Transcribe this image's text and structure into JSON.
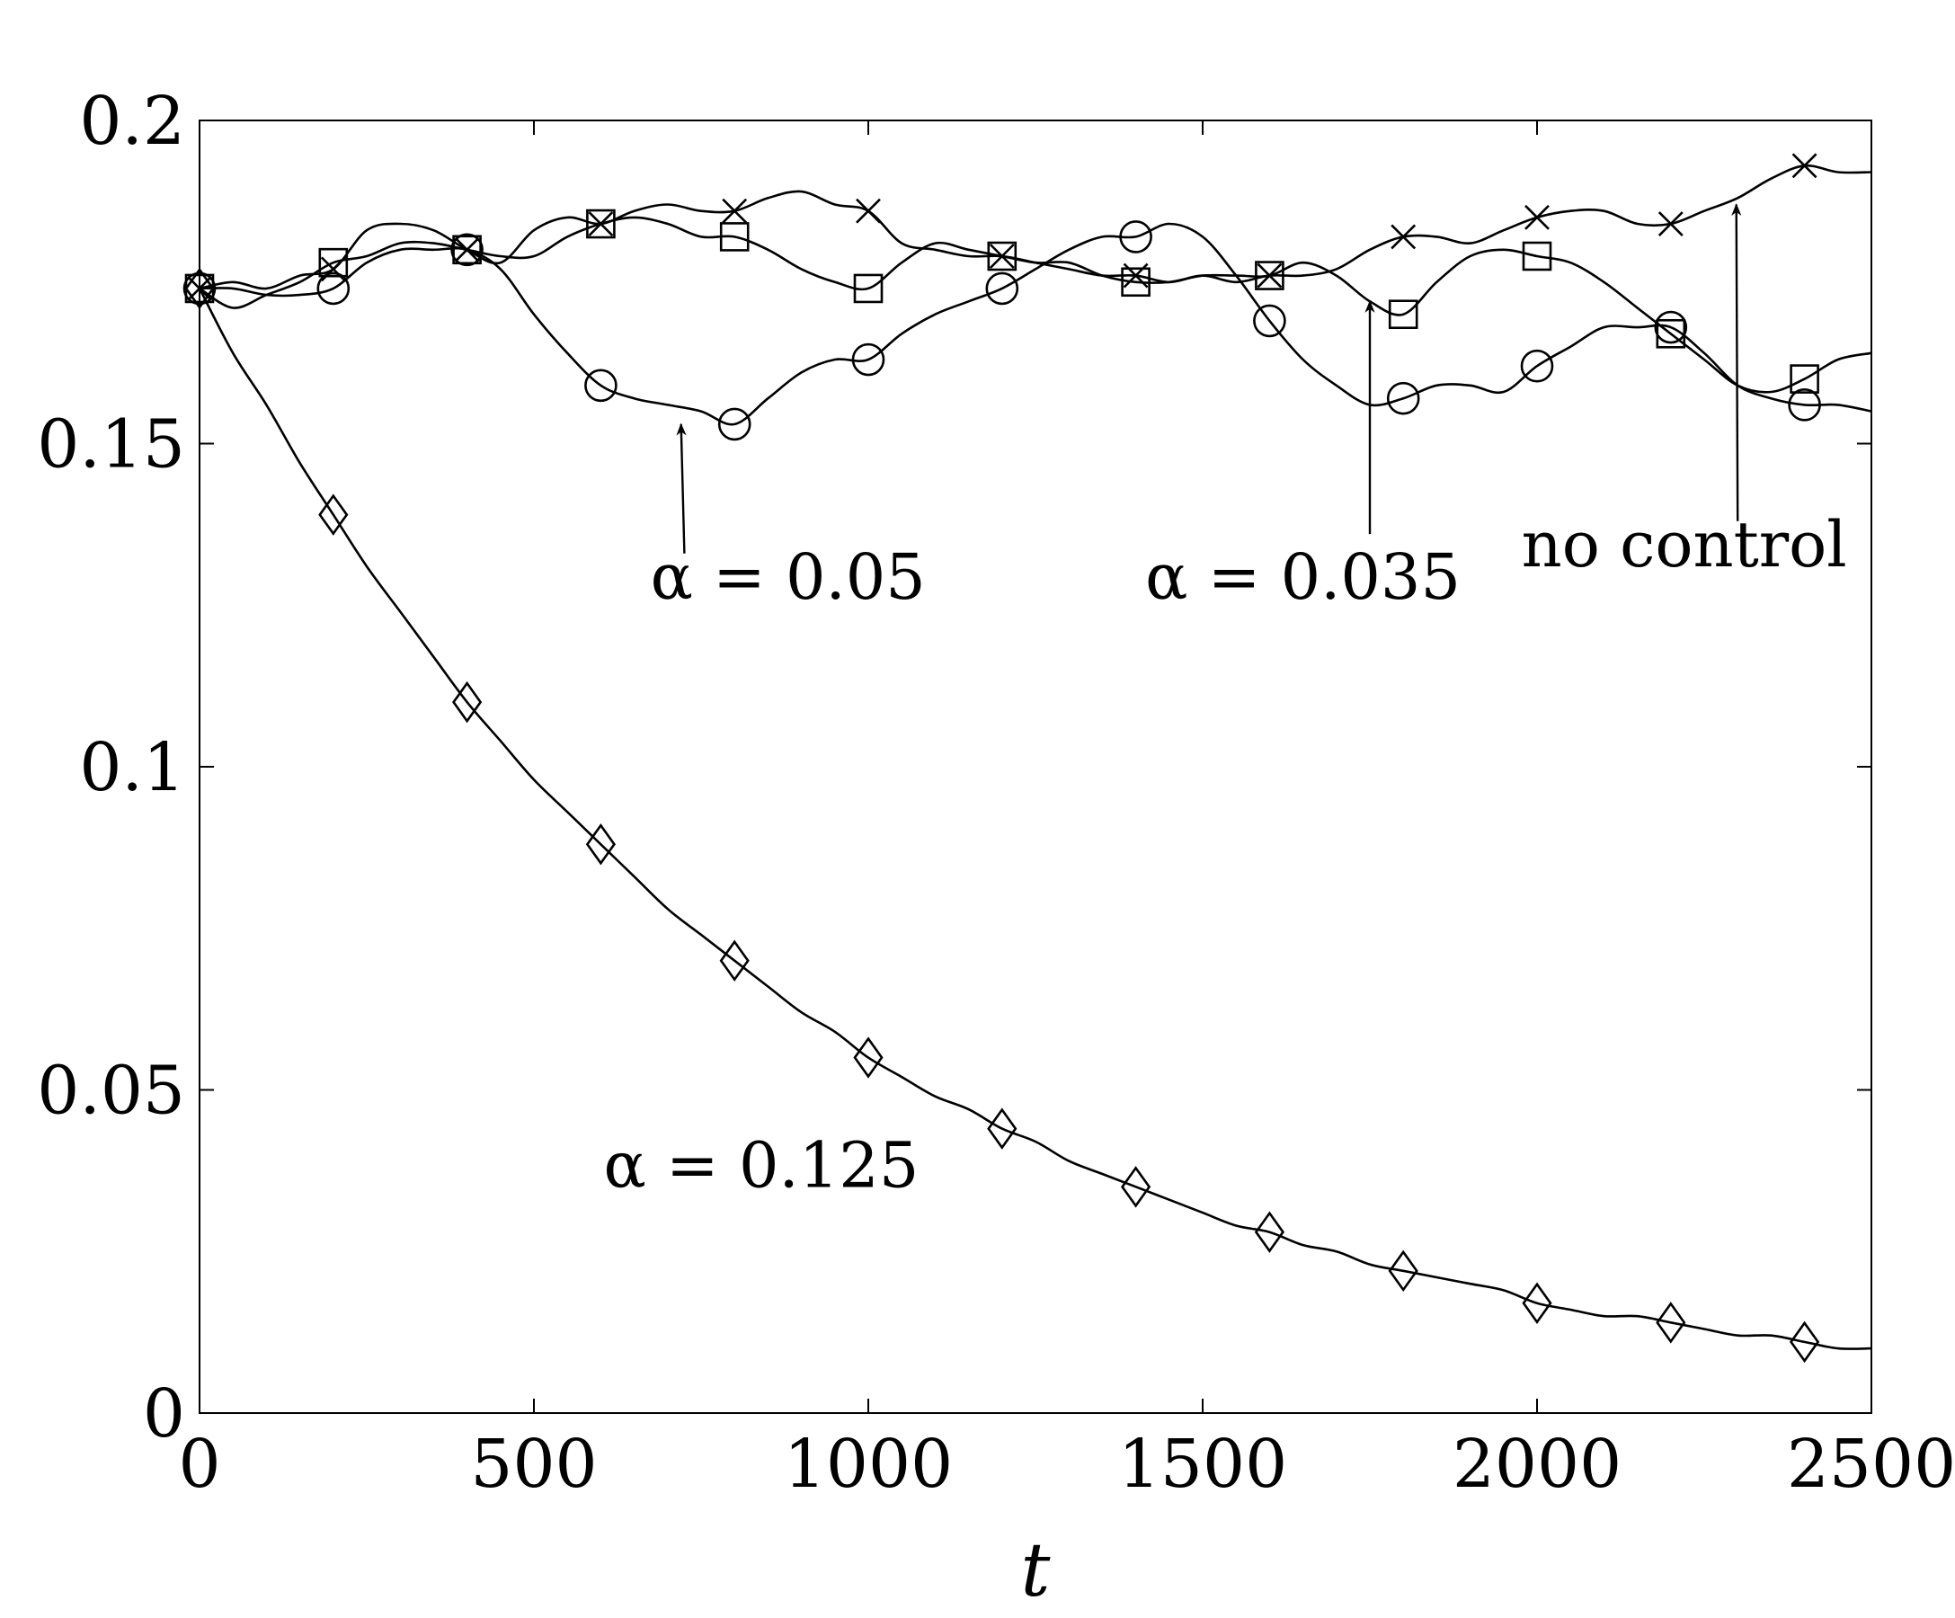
{
  "chart_data": {
    "type": "line",
    "title": "",
    "xlabel": "t",
    "ylabel": "",
    "xlim": [
      0,
      2500
    ],
    "ylim": [
      0,
      0.2
    ],
    "xticks": [
      0,
      500,
      1000,
      1500,
      2000,
      2500
    ],
    "xtick_labels": [
      "0",
      "500",
      "1000",
      "1500",
      "2000",
      "2500"
    ],
    "yticks": [
      0,
      0.05,
      0.1,
      0.15,
      0.2
    ],
    "ytick_labels": [
      "0",
      "0.05",
      "0.1",
      "0.15",
      "0.2"
    ],
    "grid": false,
    "legend": "none",
    "line_color": "#000000",
    "series": [
      {
        "label": "no control",
        "marker": "x",
        "x": [
          0,
          50,
          100,
          150,
          200,
          250,
          300,
          350,
          400,
          450,
          500,
          550,
          600,
          650,
          700,
          750,
          800,
          850,
          900,
          950,
          1000,
          1050,
          1100,
          1150,
          1200,
          1250,
          1300,
          1350,
          1400,
          1450,
          1500,
          1550,
          1600,
          1650,
          1700,
          1750,
          1800,
          1850,
          1900,
          1950,
          2000,
          2050,
          2100,
          2150,
          2200,
          2250,
          2300,
          2350,
          2400,
          2450,
          2500
        ],
        "y": [
          0.174,
          0.175,
          0.174,
          0.176,
          0.177,
          0.183,
          0.184,
          0.183,
          0.18,
          0.178,
          0.183,
          0.185,
          0.184,
          0.186,
          0.187,
          0.186,
          0.186,
          0.188,
          0.189,
          0.187,
          0.186,
          0.181,
          0.18,
          0.179,
          0.179,
          0.178,
          0.177,
          0.176,
          0.176,
          0.175,
          0.176,
          0.175,
          0.176,
          0.176,
          0.177,
          0.18,
          0.182,
          0.182,
          0.181,
          0.183,
          0.185,
          0.186,
          0.186,
          0.184,
          0.184,
          0.186,
          0.188,
          0.191,
          0.193,
          0.192,
          0.192
        ],
        "marker_x": [
          0,
          200,
          400,
          600,
          800,
          1000,
          1200,
          1400,
          1600,
          1800,
          2000,
          2200,
          2400
        ]
      },
      {
        "label": "α = 0.035",
        "marker": "square",
        "x": [
          0,
          50,
          100,
          150,
          200,
          250,
          300,
          350,
          400,
          450,
          500,
          550,
          600,
          650,
          700,
          750,
          800,
          850,
          900,
          950,
          1000,
          1050,
          1100,
          1150,
          1200,
          1250,
          1300,
          1350,
          1400,
          1450,
          1500,
          1550,
          1600,
          1650,
          1700,
          1750,
          1800,
          1850,
          1900,
          1950,
          2000,
          2050,
          2100,
          2150,
          2200,
          2250,
          2300,
          2350,
          2400,
          2450,
          2500
        ],
        "y": [
          0.174,
          0.171,
          0.173,
          0.175,
          0.178,
          0.179,
          0.181,
          0.181,
          0.18,
          0.179,
          0.179,
          0.182,
          0.184,
          0.185,
          0.184,
          0.182,
          0.182,
          0.18,
          0.177,
          0.175,
          0.174,
          0.178,
          0.181,
          0.18,
          0.179,
          0.178,
          0.178,
          0.176,
          0.175,
          0.175,
          0.176,
          0.176,
          0.176,
          0.178,
          0.176,
          0.172,
          0.17,
          0.175,
          0.179,
          0.18,
          0.179,
          0.178,
          0.175,
          0.171,
          0.167,
          0.163,
          0.159,
          0.158,
          0.16,
          0.163,
          0.164
        ],
        "marker_x": [
          0,
          200,
          400,
          600,
          800,
          1000,
          1200,
          1400,
          1600,
          1800,
          2000,
          2200,
          2400
        ]
      },
      {
        "label": "α = 0.05",
        "marker": "circle",
        "x": [
          0,
          50,
          100,
          150,
          200,
          250,
          300,
          350,
          400,
          450,
          500,
          550,
          600,
          650,
          700,
          750,
          800,
          850,
          900,
          950,
          1000,
          1050,
          1100,
          1150,
          1200,
          1250,
          1300,
          1350,
          1400,
          1450,
          1500,
          1550,
          1600,
          1650,
          1700,
          1750,
          1800,
          1850,
          1900,
          1950,
          2000,
          2050,
          2100,
          2150,
          2200,
          2250,
          2300,
          2350,
          2400,
          2450,
          2500
        ],
        "y": [
          0.174,
          0.174,
          0.173,
          0.173,
          0.174,
          0.178,
          0.18,
          0.18,
          0.18,
          0.177,
          0.17,
          0.164,
          0.159,
          0.157,
          0.156,
          0.155,
          0.153,
          0.157,
          0.161,
          0.163,
          0.163,
          0.167,
          0.17,
          0.172,
          0.174,
          0.177,
          0.18,
          0.182,
          0.182,
          0.184,
          0.182,
          0.176,
          0.169,
          0.163,
          0.159,
          0.156,
          0.157,
          0.159,
          0.159,
          0.158,
          0.162,
          0.165,
          0.168,
          0.168,
          0.168,
          0.164,
          0.159,
          0.157,
          0.156,
          0.156,
          0.155
        ],
        "marker_x": [
          0,
          200,
          400,
          600,
          800,
          1000,
          1200,
          1400,
          1600,
          1800,
          2000,
          2200,
          2400
        ]
      },
      {
        "label": "α = 0.125",
        "marker": "diamond",
        "x": [
          0,
          50,
          100,
          150,
          200,
          250,
          300,
          350,
          400,
          450,
          500,
          550,
          600,
          650,
          700,
          750,
          800,
          850,
          900,
          950,
          1000,
          1050,
          1100,
          1150,
          1200,
          1250,
          1300,
          1350,
          1400,
          1450,
          1500,
          1550,
          1600,
          1650,
          1700,
          1750,
          1800,
          1850,
          1900,
          1950,
          2000,
          2050,
          2100,
          2150,
          2200,
          2250,
          2300,
          2350,
          2400,
          2450,
          2500
        ],
        "y": [
          0.174,
          0.164,
          0.156,
          0.147,
          0.139,
          0.131,
          0.124,
          0.117,
          0.11,
          0.104,
          0.098,
          0.093,
          0.088,
          0.083,
          0.078,
          0.074,
          0.07,
          0.066,
          0.062,
          0.059,
          0.055,
          0.052,
          0.049,
          0.047,
          0.044,
          0.042,
          0.039,
          0.037,
          0.035,
          0.033,
          0.031,
          0.029,
          0.028,
          0.026,
          0.025,
          0.023,
          0.022,
          0.021,
          0.02,
          0.019,
          0.017,
          0.016,
          0.015,
          0.015,
          0.014,
          0.013,
          0.012,
          0.012,
          0.011,
          0.01,
          0.01
        ],
        "marker_x": [
          0,
          200,
          400,
          600,
          800,
          1000,
          1200,
          1400,
          1600,
          1800,
          2000,
          2200,
          2400
        ]
      }
    ],
    "annotations": [
      {
        "text": "α = 0.05",
        "x": 880,
        "y": 0.126,
        "arrow_tail": [
          725,
          0.133
        ],
        "arrow_head": [
          720,
          0.153
        ]
      },
      {
        "text": "α = 0.035",
        "x": 1650,
        "y": 0.126,
        "arrow_tail": [
          1750,
          0.136
        ],
        "arrow_head": [
          1750,
          0.172
        ]
      },
      {
        "text": "no control",
        "x": 2220,
        "y": 0.131,
        "arrow_tail": [
          2300,
          0.138
        ],
        "arrow_head": [
          2298,
          0.187
        ]
      },
      {
        "text": "α = 0.125",
        "x": 840,
        "y": 0.035
      }
    ]
  }
}
